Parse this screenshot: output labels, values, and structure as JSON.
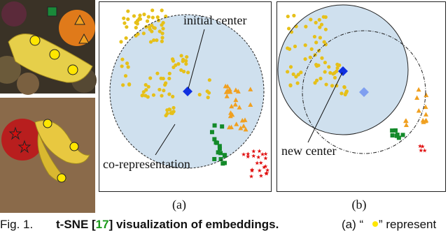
{
  "figure": {
    "panel_a": {
      "initial_center": "initial center",
      "co_representation": "co-representation",
      "label": "(a)"
    },
    "panel_b": {
      "new_center": "new center",
      "label": "(b)"
    }
  },
  "caption": {
    "fig": "Fig. 1.",
    "bold_start": "t-SNE [",
    "ref": "17",
    "bold_end": "] visualization of embeddings.",
    "text_start": "(a) “",
    "text_end": "” represent"
  }
}
